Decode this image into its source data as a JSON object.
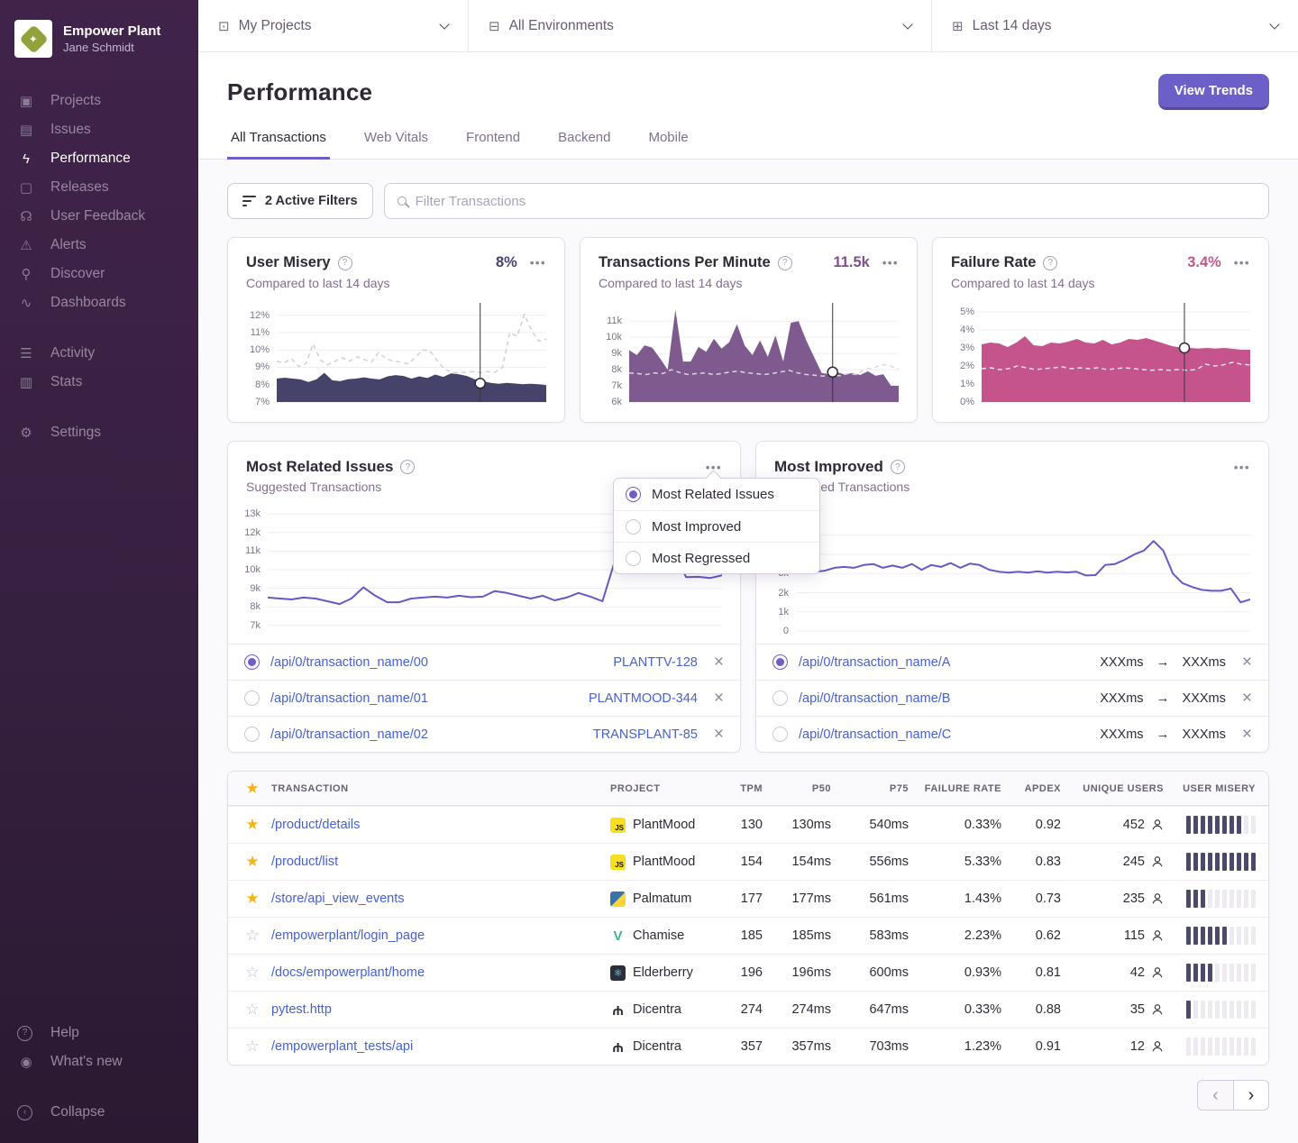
{
  "icons": {
    "logo_spark": "✦",
    "projects": "▣",
    "issues": "▤",
    "performance": "ϟ",
    "releases": "▢",
    "user_feedback": "☊",
    "alerts": "⚠",
    "discover": "⚲",
    "dashboards": "∿",
    "activity": "☰",
    "stats": "▥",
    "settings": "⚙",
    "help": "?",
    "whats_new": "◉",
    "collapse": "‹",
    "my_projects": "⊡",
    "environments": "⊟",
    "calendar": "⊞",
    "ellipsis": "•••",
    "close": "×",
    "arrow": "→",
    "star_filled": "★",
    "star_empty": "☆",
    "js_label": "JS",
    "vue": "V",
    "electron": "⚛",
    "pytest": "Ψ",
    "prev": "‹",
    "next": "›",
    "question": "?"
  },
  "sidebar": {
    "org": "Empower Plant",
    "user": "Jane Schmidt",
    "items": [
      {
        "label": "Projects"
      },
      {
        "label": "Issues"
      },
      {
        "label": "Performance"
      },
      {
        "label": "Releases"
      },
      {
        "label": "User Feedback"
      },
      {
        "label": "Alerts"
      },
      {
        "label": "Discover"
      },
      {
        "label": "Dashboards"
      }
    ],
    "secondary": [
      {
        "label": "Activity"
      },
      {
        "label": "Stats"
      }
    ],
    "settings": "Settings",
    "help": "Help",
    "whats_new": "What's new",
    "collapse": "Collapse"
  },
  "topbar": {
    "projects": "My Projects",
    "environments": "All Environments",
    "daterange": "Last 14 days"
  },
  "header": {
    "title": "Performance",
    "view_trends": "View Trends",
    "tabs": [
      "All Transactions",
      "Web Vitals",
      "Frontend",
      "Backend",
      "Mobile"
    ]
  },
  "filter": {
    "active": "2 Active Filters",
    "placeholder": "Filter Transactions"
  },
  "metric_cards": [
    {
      "title": "User Misery",
      "value": "8%",
      "subtitle": "Compared to last 14 days",
      "color": "#454271"
    },
    {
      "title": "Transactions Per Minute",
      "value": "11.5k",
      "subtitle": "Compared to last 14 days",
      "color": "#7F4E8D"
    },
    {
      "title": "Failure Rate",
      "value": "3.4%",
      "subtitle": "Compared to last 14 days",
      "color": "#C4548B"
    }
  ],
  "widgets": [
    {
      "title": "Most Related Issues",
      "subtitle": "Suggested Transactions",
      "rows": [
        {
          "selected": true,
          "transaction": "/api/0/transaction_name/00",
          "issue": "PLANTTV-128"
        },
        {
          "selected": false,
          "transaction": "/api/0/transaction_name/01",
          "issue": "PLANTMOOD-344"
        },
        {
          "selected": false,
          "transaction": "/api/0/transaction_name/02",
          "issue": "TRANSPLANT-85"
        }
      ]
    },
    {
      "title": "Most Improved",
      "subtitle": "Suggested Transactions",
      "rows": [
        {
          "selected": true,
          "transaction": "/api/0/transaction_name/A",
          "from": "XXXms",
          "to": "XXXms"
        },
        {
          "selected": false,
          "transaction": "/api/0/transaction_name/B",
          "from": "XXXms",
          "to": "XXXms"
        },
        {
          "selected": false,
          "transaction": "/api/0/transaction_name/C",
          "from": "XXXms",
          "to": "XXXms"
        }
      ]
    }
  ],
  "menu": {
    "items": [
      {
        "label": "Most Related Issues",
        "selected": true
      },
      {
        "label": "Most Improved",
        "selected": false
      },
      {
        "label": "Most Regressed",
        "selected": false
      }
    ]
  },
  "table": {
    "columns": [
      "TRANSACTION",
      "PROJECT",
      "TPM",
      "P50",
      "P75",
      "FAILURE RATE",
      "APDEX",
      "UNIQUE USERS",
      "USER MISERY"
    ],
    "misery_total": 10,
    "rows": [
      {
        "starred": true,
        "transaction": "/product/details",
        "project": "PlantMood",
        "platform": "js",
        "tpm": "130",
        "p50": "130ms",
        "p75": "540ms",
        "failure_rate": "0.33%",
        "apdex": "0.92",
        "unique_users": "452",
        "misery": 8
      },
      {
        "starred": true,
        "transaction": "/product/list",
        "project": "PlantMood",
        "platform": "js",
        "tpm": "154",
        "p50": "154ms",
        "p75": "556ms",
        "failure_rate": "5.33%",
        "apdex": "0.83",
        "unique_users": "245",
        "misery": 10
      },
      {
        "starred": true,
        "transaction": "/store/api_view_events",
        "project": "Palmatum",
        "platform": "python",
        "tpm": "177",
        "p50": "177ms",
        "p75": "561ms",
        "failure_rate": "1.43%",
        "apdex": "0.73",
        "unique_users": "235",
        "misery": 3
      },
      {
        "starred": false,
        "transaction": "/empowerplant/login_page",
        "project": "Chamise",
        "platform": "vue",
        "tpm": "185",
        "p50": "185ms",
        "p75": "583ms",
        "failure_rate": "2.23%",
        "apdex": "0.62",
        "unique_users": "115",
        "misery": 6
      },
      {
        "starred": false,
        "transaction": "/docs/empowerplant/home",
        "project": "Elderberry",
        "platform": "electron",
        "tpm": "196",
        "p50": "196ms",
        "p75": "600ms",
        "failure_rate": "0.93%",
        "apdex": "0.81",
        "unique_users": "42",
        "misery": 4
      },
      {
        "starred": false,
        "transaction": "pytest.http",
        "project": "Dicentra",
        "platform": "pytest",
        "tpm": "274",
        "p50": "274ms",
        "p75": "647ms",
        "failure_rate": "0.33%",
        "apdex": "0.88",
        "unique_users": "35",
        "misery": 1
      },
      {
        "starred": false,
        "transaction": "/empowerplant_tests/api",
        "project": "Dicentra",
        "platform": "pytest",
        "tpm": "357",
        "p50": "357ms",
        "p75": "703ms",
        "failure_rate": "1.23%",
        "apdex": "0.91",
        "unique_users": "12",
        "misery": 0
      }
    ]
  },
  "chart_data": [
    {
      "type": "area",
      "title": "User Misery",
      "ylabel": "%",
      "ylim": [
        7,
        12.5
      ],
      "baseline": 7,
      "grid": true,
      "yticks": [
        {
          "value": 7,
          "label": "7%"
        },
        {
          "value": 8,
          "label": "8%"
        },
        {
          "value": 9,
          "label": "9%"
        },
        {
          "value": 10,
          "label": "10%"
        },
        {
          "value": 11,
          "label": "11%"
        },
        {
          "value": 12,
          "label": "12%"
        }
      ],
      "series": [
        {
          "name": "current",
          "color": "#46436a",
          "fill": true,
          "values": [
            8.35,
            8.4,
            8.35,
            8.3,
            8.15,
            8.3,
            8.68,
            8.25,
            8.2,
            8.32,
            8.35,
            8.42,
            8.35,
            8.3,
            8.48,
            8.55,
            8.5,
            8.35,
            8.48,
            8.38,
            8.58,
            8.45,
            8.65,
            8.6,
            8.5,
            8.3,
            8.2,
            8.1,
            8.05,
            8.1,
            8.07,
            8.02,
            8.05,
            8.02,
            7.97
          ]
        },
        {
          "name": "previous period",
          "color": "#d4cdde",
          "dashed": true,
          "width": 1.5,
          "values": [
            9.35,
            9.25,
            9.5,
            9.05,
            9.2,
            10.35,
            9.4,
            9.15,
            9.35,
            9.55,
            9.35,
            9.6,
            9.45,
            9.3,
            9.85,
            9.5,
            9.35,
            9.3,
            9.2,
            9.55,
            10.0,
            9.95,
            9.4,
            8.9,
            8.72,
            8.68,
            8.72,
            8.76,
            8.7,
            8.76,
            8.72,
            9.0,
            11.0,
            10.78,
            12.05,
            11.1,
            10.5,
            10.62
          ]
        }
      ],
      "cursor": {
        "x_fraction": 0.755,
        "value": 8.08
      }
    },
    {
      "type": "area",
      "title": "Transactions Per Minute",
      "ylabel": "k",
      "ylim": [
        6,
        11.9
      ],
      "baseline": 6,
      "grid": true,
      "yticks": [
        {
          "value": 6,
          "label": "6k"
        },
        {
          "value": 7,
          "label": "7k"
        },
        {
          "value": 8,
          "label": "8k"
        },
        {
          "value": 9,
          "label": "9k"
        },
        {
          "value": 10,
          "label": "10k"
        },
        {
          "value": 11,
          "label": "11k"
        }
      ],
      "series": [
        {
          "name": "current",
          "color": "#7f5a8f",
          "fill": true,
          "values": [
            9.2,
            8.9,
            9.5,
            9.35,
            8.7,
            8.0,
            11.7,
            8.5,
            8.5,
            9.4,
            9.1,
            9.9,
            9.3,
            9.7,
            10.8,
            9.5,
            8.9,
            9.8,
            8.8,
            10.1,
            8.5,
            10.9,
            11.0,
            9.8,
            8.8,
            7.8,
            7.72,
            7.85,
            7.7,
            7.8,
            7.67,
            7.9,
            7.62,
            7.72,
            7.0,
            7.0
          ]
        },
        {
          "name": "previous period",
          "color": "#dcd5e3",
          "dashed": true,
          "width": 1.5,
          "values": [
            7.8,
            7.76,
            7.7,
            7.8,
            7.76,
            8.0,
            7.82,
            7.7,
            7.76,
            7.8,
            7.7,
            7.76,
            7.86,
            7.9,
            7.8,
            7.76,
            7.7,
            7.76,
            7.86,
            7.96,
            7.8,
            7.7,
            7.66,
            7.6,
            7.7,
            7.62,
            7.76,
            7.7,
            8.05,
            8.1,
            8.32,
            8.22,
            8.05
          ]
        }
      ],
      "cursor": {
        "x_fraction": 0.755,
        "value": 7.85
      }
    },
    {
      "type": "area",
      "title": "Failure Rate",
      "ylabel": "%",
      "ylim": [
        0,
        5.3
      ],
      "baseline": 0,
      "grid": true,
      "yticks": [
        {
          "value": 0,
          "label": "0%"
        },
        {
          "value": 1,
          "label": "1%"
        },
        {
          "value": 2,
          "label": "2%"
        },
        {
          "value": 3,
          "label": "3%"
        },
        {
          "value": 4,
          "label": "4%"
        },
        {
          "value": 5,
          "label": "5%"
        }
      ],
      "series": [
        {
          "name": "current",
          "color": "#c5548c",
          "fill": true,
          "values": [
            3.2,
            3.3,
            3.25,
            3.05,
            3.3,
            3.65,
            3.15,
            3.1,
            3.3,
            3.25,
            3.35,
            3.5,
            3.3,
            3.25,
            3.45,
            3.2,
            3.3,
            3.5,
            3.45,
            3.55,
            3.4,
            3.25,
            3.1,
            3.02,
            3.0,
            2.96,
            3.0,
            2.96,
            3.0,
            2.95,
            2.9,
            2.9
          ]
        },
        {
          "name": "previous period",
          "color": "#e9e2ee",
          "dashed": true,
          "width": 1.5,
          "values": [
            1.85,
            1.9,
            1.8,
            1.85,
            2.0,
            1.9,
            1.8,
            1.85,
            1.9,
            1.95,
            1.85,
            1.9,
            1.85,
            1.9,
            1.8,
            1.85,
            1.9,
            1.85,
            1.8,
            1.76,
            1.8,
            1.76,
            1.8,
            1.76,
            1.8,
            2.1,
            2.0,
            2.06,
            2.2,
            2.1,
            2.05
          ]
        }
      ],
      "cursor": {
        "x_fraction": 0.755,
        "value": 3.0
      }
    },
    {
      "type": "line",
      "title": "Most Related Issues — Suggested Transactions",
      "ylabel": "k",
      "ylim": [
        6.7,
        13.4
      ],
      "grid": true,
      "yticks": [
        {
          "value": 7,
          "label": "7k"
        },
        {
          "value": 8,
          "label": "8k"
        },
        {
          "value": 9,
          "label": "9k"
        },
        {
          "value": 10,
          "label": "10k"
        },
        {
          "value": 11,
          "label": "11k"
        },
        {
          "value": 12,
          "label": "12k"
        },
        {
          "value": 13,
          "label": "13k"
        }
      ],
      "series": [
        {
          "name": "transactions",
          "color": "#6559c5",
          "width": 2,
          "values": [
            8.5,
            8.45,
            8.4,
            8.5,
            8.45,
            8.3,
            8.15,
            8.45,
            9.05,
            8.6,
            8.25,
            8.25,
            8.45,
            8.5,
            8.55,
            8.5,
            8.6,
            8.52,
            8.55,
            8.85,
            8.75,
            8.6,
            8.45,
            8.6,
            8.35,
            8.5,
            8.75,
            8.55,
            8.3,
            10.4,
            10.45,
            10.2,
            10.0,
            9.8,
            10.9,
            9.6,
            9.62,
            9.55,
            9.7
          ]
        }
      ]
    },
    {
      "type": "line",
      "title": "Most Improved — Suggested Transactions",
      "ylabel": "k",
      "ylim": [
        0,
        6.5
      ],
      "grid": true,
      "yticks": [
        {
          "value": 0,
          "label": "0"
        },
        {
          "value": 1,
          "label": "1k"
        },
        {
          "value": 2,
          "label": "2k"
        },
        {
          "value": 3,
          "label": "3k"
        },
        {
          "value": 4,
          "label": "4k"
        },
        {
          "value": 5,
          "label": "5k"
        }
      ],
      "series": [
        {
          "name": "transactions",
          "color": "#6559c5",
          "width": 2,
          "values": [
            3.3,
            3.7,
            3.1,
            3.15,
            3.3,
            3.35,
            3.3,
            3.45,
            3.5,
            3.3,
            3.42,
            3.3,
            3.5,
            3.2,
            3.45,
            3.35,
            3.55,
            3.3,
            3.52,
            3.45,
            3.2,
            3.1,
            3.05,
            3.1,
            3.05,
            3.12,
            3.05,
            3.1,
            3.06,
            3.1,
            2.9,
            2.92,
            3.45,
            3.5,
            3.72,
            4.0,
            4.2,
            4.7,
            4.2,
            3.0,
            2.5,
            2.3,
            2.15,
            2.1,
            2.1,
            2.22,
            1.5,
            1.65
          ]
        }
      ]
    }
  ]
}
